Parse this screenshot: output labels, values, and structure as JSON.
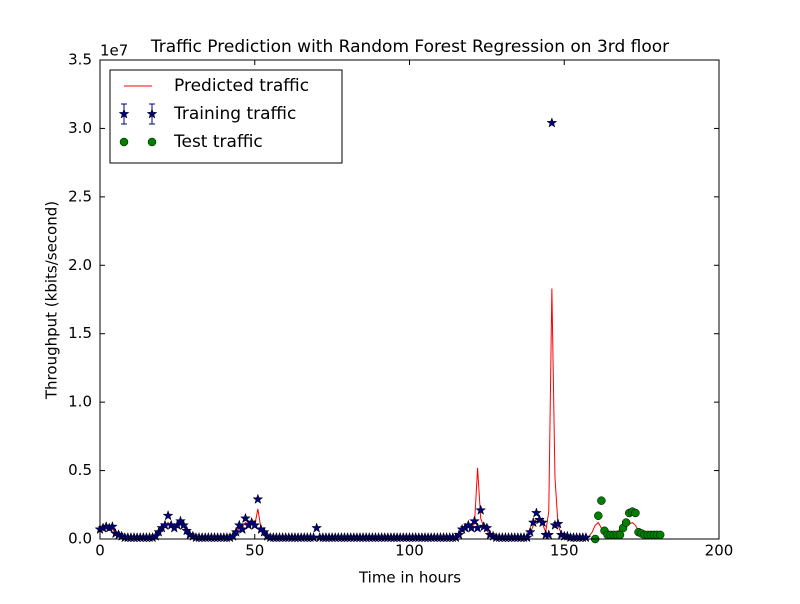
{
  "chart_data": {
    "type": "line",
    "title": "Traffic Prediction with Random Forest Regression on 3rd floor",
    "x_label": "Time in hours",
    "y_label": "Throughput (kbits/second)",
    "y_offset_label": "1e7",
    "xlim": [
      0,
      200
    ],
    "xticks": [
      0,
      50,
      100,
      150,
      200
    ],
    "ylim": [
      0,
      3.5
    ],
    "yticks": [
      {
        "value": 0,
        "label": "0.0"
      },
      0.5,
      {
        "value": 1,
        "label": "1.0"
      },
      1.5,
      {
        "value": 2,
        "label": "2.0"
      },
      2.5,
      {
        "value": 3,
        "label": "3.0"
      },
      3.5
    ],
    "legend": "upper left",
    "series": [
      {
        "name": "Predicted traffic",
        "kind": "line",
        "color": "#ff0000",
        "x": [
          0,
          1,
          2,
          3,
          4,
          5,
          6,
          7,
          8,
          9,
          10,
          11,
          12,
          13,
          14,
          15,
          16,
          17,
          18,
          19,
          20,
          21,
          22,
          23,
          24,
          25,
          26,
          27,
          28,
          29,
          30,
          31,
          32,
          33,
          34,
          35,
          36,
          37,
          38,
          39,
          40,
          41,
          42,
          43,
          44,
          45,
          46,
          47,
          48,
          49,
          50,
          51,
          52,
          53,
          54,
          55,
          56,
          57,
          58,
          59,
          60,
          61,
          62,
          63,
          64,
          65,
          66,
          67,
          68,
          69,
          70,
          71,
          72,
          73,
          74,
          75,
          76,
          77,
          78,
          79,
          80,
          81,
          82,
          83,
          84,
          85,
          86,
          87,
          88,
          89,
          90,
          91,
          92,
          93,
          94,
          95,
          96,
          97,
          98,
          99,
          100,
          101,
          102,
          103,
          104,
          105,
          106,
          107,
          108,
          109,
          110,
          111,
          112,
          113,
          114,
          115,
          116,
          117,
          118,
          119,
          120,
          121,
          122,
          123,
          124,
          125,
          126,
          127,
          128,
          129,
          130,
          131,
          132,
          133,
          134,
          135,
          136,
          137,
          138,
          139,
          140,
          141,
          142,
          143,
          144,
          145,
          146,
          147,
          148,
          149,
          150,
          151,
          152,
          153,
          154,
          155,
          156,
          157,
          158,
          159,
          160,
          161,
          162,
          163,
          164,
          165,
          166,
          167,
          168,
          169,
          170,
          171,
          172,
          173,
          174,
          175,
          176,
          177,
          178,
          179,
          180,
          181
        ],
        "values": [
          0.06,
          0.08,
          0.09,
          0.08,
          0.07,
          0.05,
          0.03,
          0.02,
          0.01,
          0.01,
          0.01,
          0.01,
          0.01,
          0.01,
          0.01,
          0.01,
          0.01,
          0.01,
          0.02,
          0.04,
          0.07,
          0.1,
          0.12,
          0.1,
          0.09,
          0.1,
          0.11,
          0.09,
          0.06,
          0.03,
          0.02,
          0.01,
          0.01,
          0.01,
          0.01,
          0.01,
          0.01,
          0.01,
          0.01,
          0.01,
          0.01,
          0.01,
          0.01,
          0.02,
          0.05,
          0.08,
          0.09,
          0.12,
          0.11,
          0.11,
          0.1,
          0.22,
          0.08,
          0.04,
          0.02,
          0.01,
          0.01,
          0.01,
          0.01,
          0.01,
          0.01,
          0.01,
          0.01,
          0.01,
          0.01,
          0.01,
          0.01,
          0.01,
          0.01,
          0.01,
          0.01,
          0.01,
          0.01,
          0.01,
          0.01,
          0.01,
          0.01,
          0.01,
          0.01,
          0.01,
          0.01,
          0.01,
          0.01,
          0.01,
          0.01,
          0.01,
          0.01,
          0.01,
          0.01,
          0.01,
          0.01,
          0.01,
          0.01,
          0.01,
          0.01,
          0.01,
          0.01,
          0.01,
          0.01,
          0.01,
          0.01,
          0.01,
          0.01,
          0.01,
          0.01,
          0.01,
          0.01,
          0.01,
          0.01,
          0.01,
          0.01,
          0.01,
          0.01,
          0.01,
          0.01,
          0.01,
          0.03,
          0.06,
          0.08,
          0.09,
          0.09,
          0.11,
          0.52,
          0.15,
          0.09,
          0.06,
          0.03,
          0.02,
          0.01,
          0.01,
          0.01,
          0.01,
          0.01,
          0.01,
          0.01,
          0.01,
          0.01,
          0.01,
          0.01,
          0.04,
          0.1,
          0.15,
          0.14,
          0.11,
          0.05,
          0.2,
          1.83,
          0.45,
          0.1,
          0.04,
          0.02,
          0.01,
          0.01,
          0.01,
          0.01,
          0.01,
          0.01,
          0.01,
          0.02,
          0.05,
          0.1,
          0.12,
          0.08,
          0.05,
          0.04,
          0.04,
          0.04,
          0.05,
          0.07,
          0.09,
          0.1,
          0.11,
          0.12,
          0.1,
          0.06,
          0.04,
          0.03,
          0.03,
          0.03,
          0.03,
          0.03,
          0.03
        ]
      },
      {
        "name": "Training traffic",
        "kind": "star",
        "color": "#000080",
        "x": [
          0,
          1,
          2,
          3,
          4,
          5,
          6,
          7,
          8,
          9,
          10,
          11,
          12,
          13,
          14,
          15,
          16,
          17,
          18,
          19,
          20,
          21,
          22,
          23,
          24,
          25,
          26,
          27,
          28,
          29,
          30,
          31,
          32,
          33,
          34,
          35,
          36,
          37,
          38,
          39,
          40,
          41,
          42,
          43,
          44,
          45,
          46,
          47,
          48,
          49,
          50,
          51,
          52,
          53,
          54,
          55,
          56,
          57,
          58,
          59,
          60,
          61,
          62,
          63,
          64,
          65,
          66,
          67,
          68,
          69,
          70,
          71,
          72,
          73,
          74,
          75,
          76,
          77,
          78,
          79,
          80,
          81,
          82,
          83,
          84,
          85,
          86,
          87,
          88,
          89,
          90,
          91,
          92,
          93,
          94,
          95,
          96,
          97,
          98,
          99,
          100,
          101,
          102,
          103,
          104,
          105,
          106,
          107,
          108,
          109,
          110,
          111,
          112,
          113,
          114,
          115,
          116,
          117,
          118,
          119,
          120,
          121,
          122,
          123,
          124,
          125,
          126,
          127,
          128,
          129,
          130,
          131,
          132,
          133,
          134,
          135,
          136,
          137,
          138,
          139,
          140,
          141,
          142,
          143,
          144,
          145,
          146,
          147,
          148,
          149,
          150,
          151,
          152,
          153,
          154,
          155,
          156,
          157
        ],
        "values": [
          0.07,
          0.08,
          0.09,
          0.08,
          0.09,
          0.04,
          0.03,
          0.02,
          0.01,
          0.01,
          0.01,
          0.01,
          0.01,
          0.01,
          0.01,
          0.01,
          0.01,
          0.01,
          0.02,
          0.05,
          0.08,
          0.1,
          0.17,
          0.1,
          0.08,
          0.1,
          0.13,
          0.1,
          0.06,
          0.03,
          0.02,
          0.01,
          0.01,
          0.01,
          0.01,
          0.01,
          0.01,
          0.01,
          0.01,
          0.01,
          0.01,
          0.01,
          0.01,
          0.02,
          0.05,
          0.1,
          0.07,
          0.15,
          0.1,
          0.12,
          0.1,
          0.29,
          0.07,
          0.05,
          0.02,
          0.01,
          0.01,
          0.01,
          0.01,
          0.01,
          0.01,
          0.01,
          0.01,
          0.01,
          0.01,
          0.01,
          0.01,
          0.01,
          0.01,
          0.01,
          0.08,
          0.01,
          0.01,
          0.01,
          0.01,
          0.01,
          0.01,
          0.01,
          0.01,
          0.01,
          0.01,
          0.01,
          0.01,
          0.01,
          0.01,
          0.01,
          0.01,
          0.01,
          0.01,
          0.01,
          0.01,
          0.01,
          0.01,
          0.01,
          0.01,
          0.01,
          0.01,
          0.01,
          0.01,
          0.01,
          0.01,
          0.01,
          0.01,
          0.01,
          0.01,
          0.01,
          0.01,
          0.01,
          0.01,
          0.01,
          0.01,
          0.01,
          0.01,
          0.01,
          0.01,
          0.01,
          0.03,
          0.07,
          0.08,
          0.1,
          0.08,
          0.13,
          0.08,
          0.21,
          0.09,
          0.08,
          0.03,
          0.02,
          0.01,
          0.01,
          0.01,
          0.01,
          0.01,
          0.01,
          0.01,
          0.01,
          0.01,
          0.01,
          0.01,
          0.05,
          0.12,
          0.19,
          0.14,
          0.12,
          0.03,
          0.03,
          3.04,
          0.1,
          0.11,
          0.03,
          0.02,
          0.02,
          0.01,
          0.01,
          0.01,
          0.01,
          0.01,
          0.01
        ]
      },
      {
        "name": "Test traffic",
        "kind": "circle",
        "color": "#008000",
        "x": [
          160,
          161,
          162,
          163,
          164,
          165,
          166,
          167,
          168,
          169,
          170,
          171,
          172,
          173,
          174,
          175,
          176,
          177,
          178,
          179,
          180,
          181
        ],
        "values": [
          0,
          0.17,
          0.28,
          0.06,
          0.03,
          0.03,
          0.03,
          0.03,
          0.03,
          0.08,
          0.12,
          0.19,
          0.2,
          0.19,
          0.05,
          0.04,
          0.03,
          0.03,
          0.03,
          0.03,
          0.03,
          0.03
        ]
      }
    ]
  }
}
